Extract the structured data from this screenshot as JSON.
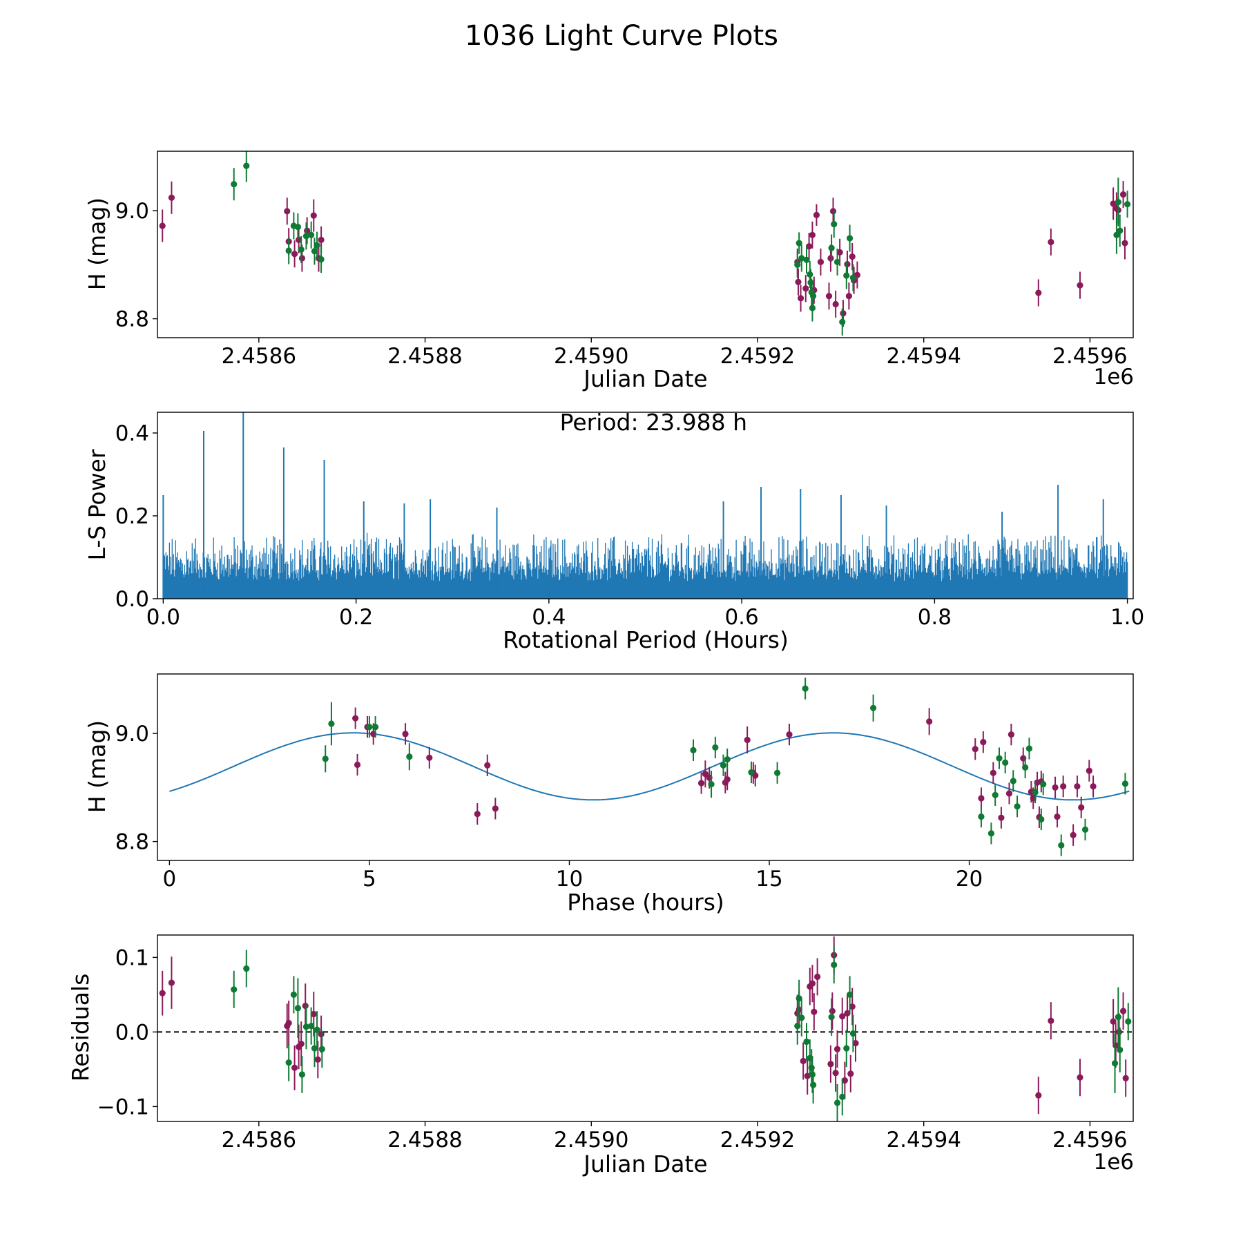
{
  "figure": {
    "title": "1036 Light Curve Plots"
  },
  "colors": {
    "series_a": "#8b1a5a",
    "series_b": "#0e7a33",
    "model_line": "#1f77b4",
    "periodogram": "#1f77b4",
    "zero_line": "#000000"
  },
  "chart_data": [
    {
      "type": "scatter",
      "name": "light-curve",
      "xlabel": "Julian Date",
      "ylabel": "H (mag)",
      "x_offset_label": "1e6",
      "xlim": [
        2458478,
        2459652
      ],
      "ylim": [
        8.765,
        9.11
      ],
      "xticks": [
        2458600,
        2458800,
        2459000,
        2459200,
        2459400,
        2459600
      ],
      "xtick_labels": [
        "2.4586",
        "2.4588",
        "2.4590",
        "2.4592",
        "2.4594",
        "2.4596"
      ],
      "yticks": [
        8.8,
        9.0
      ],
      "ytick_labels": [
        "8.8",
        "9.0"
      ],
      "series": [
        {
          "name": "band-1",
          "color_key": "series_a",
          "x": [
            2458484,
            2458495,
            2458634,
            2458636,
            2458643,
            2458648,
            2458652,
            2458658,
            2458666,
            2458672,
            2458675,
            2459248,
            2459249,
            2459252,
            2459258,
            2459262,
            2459266,
            2459268,
            2459271,
            2459276,
            2459286,
            2459288,
            2459291,
            2459294,
            2459299,
            2459303,
            2459308,
            2459310,
            2459314,
            2459316,
            2459320,
            2459538,
            2459553,
            2459588,
            2459628,
            2459632,
            2459634,
            2459640,
            2459642
          ],
          "y": [
            8.972,
            9.024,
            8.999,
            8.943,
            8.92,
            8.946,
            8.912,
            8.963,
            8.991,
            8.912,
            8.946,
            8.905,
            8.868,
            8.838,
            8.856,
            8.934,
            8.955,
            8.853,
            8.992,
            8.905,
            8.842,
            8.912,
            8.999,
            8.827,
            8.923,
            8.81,
            8.901,
            8.842,
            8.915,
            8.871,
            8.881,
            8.848,
            8.942,
            8.862,
            9.013,
            9.004,
            9.001,
            9.03,
            8.94
          ],
          "err": [
            0.03,
            0.03,
            0.025,
            0.025,
            0.025,
            0.025,
            0.025,
            0.025,
            0.03,
            0.025,
            0.025,
            0.025,
            0.025,
            0.025,
            0.025,
            0.025,
            0.025,
            0.025,
            0.02,
            0.025,
            0.025,
            0.025,
            0.025,
            0.025,
            0.025,
            0.025,
            0.025,
            0.025,
            0.025,
            0.025,
            0.025,
            0.025,
            0.025,
            0.025,
            0.03,
            0.03,
            0.025,
            0.025,
            0.03
          ]
        },
        {
          "name": "band-2",
          "color_key": "series_b",
          "x": [
            2458570,
            2458585,
            2458636,
            2458642,
            2458647,
            2458651,
            2458657,
            2458663,
            2458667,
            2458670,
            2458675,
            2459248,
            2459250,
            2459253,
            2459259,
            2459263,
            2459264,
            2459265,
            2459266,
            2459267,
            2459289,
            2459292,
            2459296,
            2459302,
            2459307,
            2459311,
            2459315,
            2459632,
            2459634,
            2459636,
            2459645
          ],
          "y": [
            9.049,
            9.083,
            8.926,
            8.972,
            8.97,
            8.928,
            8.953,
            8.955,
            8.925,
            8.936,
            8.91,
            8.9,
            8.94,
            8.912,
            8.909,
            8.882,
            8.867,
            8.849,
            8.82,
            8.842,
            8.931,
            8.975,
            8.905,
            8.794,
            8.88,
            8.949,
            8.876,
            8.955,
            9.016,
            8.963,
            9.012
          ],
          "err": [
            0.03,
            0.03,
            0.025,
            0.025,
            0.025,
            0.025,
            0.025,
            0.025,
            0.025,
            0.025,
            0.025,
            0.025,
            0.02,
            0.025,
            0.025,
            0.025,
            0.025,
            0.025,
            0.025,
            0.025,
            0.025,
            0.025,
            0.025,
            0.025,
            0.025,
            0.025,
            0.025,
            0.035,
            0.045,
            0.03,
            0.025
          ]
        }
      ]
    },
    {
      "type": "line",
      "name": "periodogram",
      "xlabel": "Rotational Period (Hours)",
      "ylabel": "L-S Power",
      "annotation": "Period: 23.988 h",
      "xlim": [
        -0.006,
        1.006
      ],
      "ylim": [
        0.0,
        0.45
      ],
      "xticks": [
        0.0,
        0.2,
        0.4,
        0.6,
        0.8,
        1.0
      ],
      "xtick_labels": [
        "0.0",
        "0.2",
        "0.4",
        "0.6",
        "0.8",
        "1.0"
      ],
      "yticks": [
        0.0,
        0.2,
        0.4
      ],
      "ytick_labels": [
        "0.0",
        "0.2",
        "0.4"
      ],
      "peaks": {
        "x": [
          0.0,
          0.042,
          0.083,
          0.125,
          0.167,
          0.208,
          0.25,
          0.277,
          0.346,
          0.581,
          0.62,
          0.661,
          0.703,
          0.75,
          0.87,
          0.928,
          0.975
        ],
        "y": [
          0.25,
          0.405,
          0.455,
          0.365,
          0.335,
          0.235,
          0.23,
          0.24,
          0.22,
          0.235,
          0.27,
          0.265,
          0.25,
          0.225,
          0.21,
          0.275,
          0.24
        ]
      },
      "noise_level": 0.12
    },
    {
      "type": "scatter",
      "name": "phase-folded",
      "xlabel": "Phase (hours)",
      "ylabel": "H (mag)",
      "xlim": [
        -0.3,
        24.1
      ],
      "ylim": [
        8.765,
        9.11
      ],
      "xticks": [
        0,
        5,
        10,
        15,
        20
      ],
      "xtick_labels": [
        "0",
        "5",
        "10",
        "15",
        "20"
      ],
      "yticks": [
        8.8,
        9.0
      ],
      "ytick_labels": [
        "8.8",
        "9.0"
      ],
      "model": {
        "mean": 8.939,
        "amplitude": 0.062,
        "peak_phase": 4.6,
        "period": 11.994,
        "x_range": [
          0,
          24
        ]
      },
      "series": [
        {
          "name": "band-1",
          "color_key": "series_a",
          "x": [
            4.65,
            4.7,
            4.95,
            5.1,
            5.9,
            6.5,
            7.7,
            7.95,
            8.15,
            13.3,
            13.4,
            13.5,
            13.9,
            13.95,
            14.45,
            14.6,
            14.65,
            15.5,
            19.0,
            20.15,
            20.3,
            20.35,
            20.6,
            20.8,
            21.0,
            21.05,
            21.35,
            21.55,
            21.6,
            21.7,
            21.75,
            21.8,
            22.15,
            22.2,
            22.35,
            22.6,
            22.7,
            22.8,
            23.0,
            23.1
          ],
          "y": [
            9.028,
            8.942,
            9.012,
            8.999,
            8.999,
            8.955,
            8.851,
            8.941,
            8.861,
            8.908,
            8.925,
            8.918,
            8.909,
            8.915,
            8.988,
            8.927,
            8.922,
            8.998,
            9.022,
            8.971,
            8.88,
            8.984,
            8.927,
            8.844,
            8.889,
            8.998,
            8.954,
            8.892,
            8.88,
            8.909,
            8.845,
            8.911,
            8.9,
            8.846,
            8.902,
            8.812,
            8.902,
            8.863,
            8.931,
            8.902
          ],
          "err": [
            0.02,
            0.02,
            0.02,
            0.02,
            0.02,
            0.02,
            0.02,
            0.02,
            0.02,
            0.02,
            0.025,
            0.02,
            0.02,
            0.02,
            0.025,
            0.02,
            0.02,
            0.02,
            0.025,
            0.02,
            0.02,
            0.02,
            0.02,
            0.02,
            0.02,
            0.02,
            0.02,
            0.02,
            0.02,
            0.02,
            0.02,
            0.02,
            0.02,
            0.02,
            0.02,
            0.02,
            0.02,
            0.02,
            0.02,
            0.02
          ]
        },
        {
          "name": "band-2",
          "color_key": "series_b",
          "x": [
            3.9,
            4.05,
            5.0,
            5.15,
            6.0,
            13.1,
            13.55,
            13.65,
            13.85,
            13.95,
            14.55,
            15.2,
            15.9,
            17.6,
            20.3,
            20.55,
            20.65,
            20.75,
            20.9,
            21.1,
            21.2,
            21.4,
            21.5,
            21.65,
            21.8,
            21.85,
            22.3,
            22.9,
            23.9
          ],
          "y": [
            8.953,
            9.018,
            9.012,
            9.012,
            8.957,
            8.969,
            8.906,
            8.974,
            8.941,
            8.952,
            8.928,
            8.927,
            9.083,
            9.047,
            8.846,
            8.815,
            8.886,
            8.954,
            8.946,
            8.912,
            8.865,
            8.937,
            8.972,
            8.891,
            8.841,
            8.906,
            8.793,
            8.822,
            8.907
          ],
          "err": [
            0.025,
            0.04,
            0.02,
            0.02,
            0.025,
            0.02,
            0.025,
            0.02,
            0.02,
            0.02,
            0.02,
            0.02,
            0.02,
            0.025,
            0.02,
            0.02,
            0.02,
            0.02,
            0.02,
            0.02,
            0.02,
            0.02,
            0.02,
            0.02,
            0.02,
            0.02,
            0.02,
            0.02,
            0.02
          ]
        }
      ]
    },
    {
      "type": "scatter",
      "name": "residuals",
      "xlabel": "Julian Date",
      "ylabel": "Residuals",
      "x_offset_label": "1e6",
      "xlim": [
        2458478,
        2459652
      ],
      "ylim": [
        -0.12,
        0.13
      ],
      "xticks": [
        2458600,
        2458800,
        2459000,
        2459200,
        2459400,
        2459600
      ],
      "xtick_labels": [
        "2.4586",
        "2.4588",
        "2.4590",
        "2.4592",
        "2.4594",
        "2.4596"
      ],
      "yticks": [
        -0.1,
        0.0,
        0.1
      ],
      "ytick_labels": [
        "−0.1",
        "0.0",
        "0.1"
      ],
      "zero_line": 0.0,
      "series": [
        {
          "name": "band-1",
          "color_key": "series_a",
          "x": [
            2458484,
            2458495,
            2458634,
            2458636,
            2458643,
            2458648,
            2458651,
            2458656,
            2458666,
            2458671,
            2458675,
            2459248,
            2459250,
            2459255,
            2459260,
            2459263,
            2459266,
            2459268,
            2459272,
            2459288,
            2459290,
            2459292,
            2459294,
            2459296,
            2459302,
            2459305,
            2459308,
            2459312,
            2459314,
            2459318,
            2459538,
            2459553,
            2459588,
            2459628,
            2459631,
            2459635,
            2459640,
            2459643
          ],
          "y": [
            0.052,
            0.066,
            0.008,
            0.012,
            -0.048,
            -0.02,
            -0.016,
            0.035,
            0.024,
            -0.037,
            -0.003,
            0.025,
            0.03,
            -0.039,
            -0.059,
            0.061,
            0.065,
            0.027,
            0.074,
            -0.043,
            0.028,
            0.103,
            -0.055,
            -0.023,
            0.021,
            -0.065,
            0.025,
            -0.056,
            0.034,
            -0.015,
            -0.085,
            0.015,
            -0.061,
            0.014,
            -0.018,
            0.0,
            0.028,
            -0.062
          ],
          "err": [
            0.03,
            0.035,
            0.03,
            0.03,
            0.03,
            0.03,
            0.03,
            0.03,
            0.03,
            0.025,
            0.025,
            0.025,
            0.025,
            0.025,
            0.025,
            0.025,
            0.025,
            0.025,
            0.025,
            0.025,
            0.025,
            0.025,
            0.025,
            0.025,
            0.025,
            0.025,
            0.025,
            0.025,
            0.025,
            0.025,
            0.025,
            0.025,
            0.025,
            0.03,
            0.03,
            0.025,
            0.025,
            0.025
          ]
        },
        {
          "name": "band-2",
          "color_key": "series_b",
          "x": [
            2458570,
            2458585,
            2458636,
            2458642,
            2458647,
            2458652,
            2458657,
            2458663,
            2458667,
            2458670,
            2458676,
            2459248,
            2459250,
            2459253,
            2459259,
            2459263,
            2459265,
            2459266,
            2459267,
            2459289,
            2459292,
            2459296,
            2459302,
            2459307,
            2459311,
            2459315,
            2459630,
            2459634,
            2459636,
            2459646
          ],
          "y": [
            0.057,
            0.085,
            -0.041,
            0.05,
            0.032,
            -0.057,
            0.007,
            0.008,
            -0.022,
            0.003,
            -0.023,
            0.008,
            0.045,
            0.019,
            -0.013,
            -0.035,
            -0.048,
            -0.057,
            -0.071,
            0.02,
            0.09,
            -0.095,
            -0.087,
            -0.022,
            0.05,
            -0.002,
            -0.042,
            0.02,
            -0.024,
            0.014
          ],
          "err": [
            0.025,
            0.025,
            0.025,
            0.025,
            0.04,
            0.025,
            0.03,
            0.025,
            0.025,
            0.025,
            0.025,
            0.025,
            0.025,
            0.025,
            0.025,
            0.025,
            0.025,
            0.025,
            0.025,
            0.025,
            0.025,
            0.025,
            0.025,
            0.025,
            0.025,
            0.025,
            0.04,
            0.04,
            0.03,
            0.025
          ]
        }
      ]
    }
  ]
}
